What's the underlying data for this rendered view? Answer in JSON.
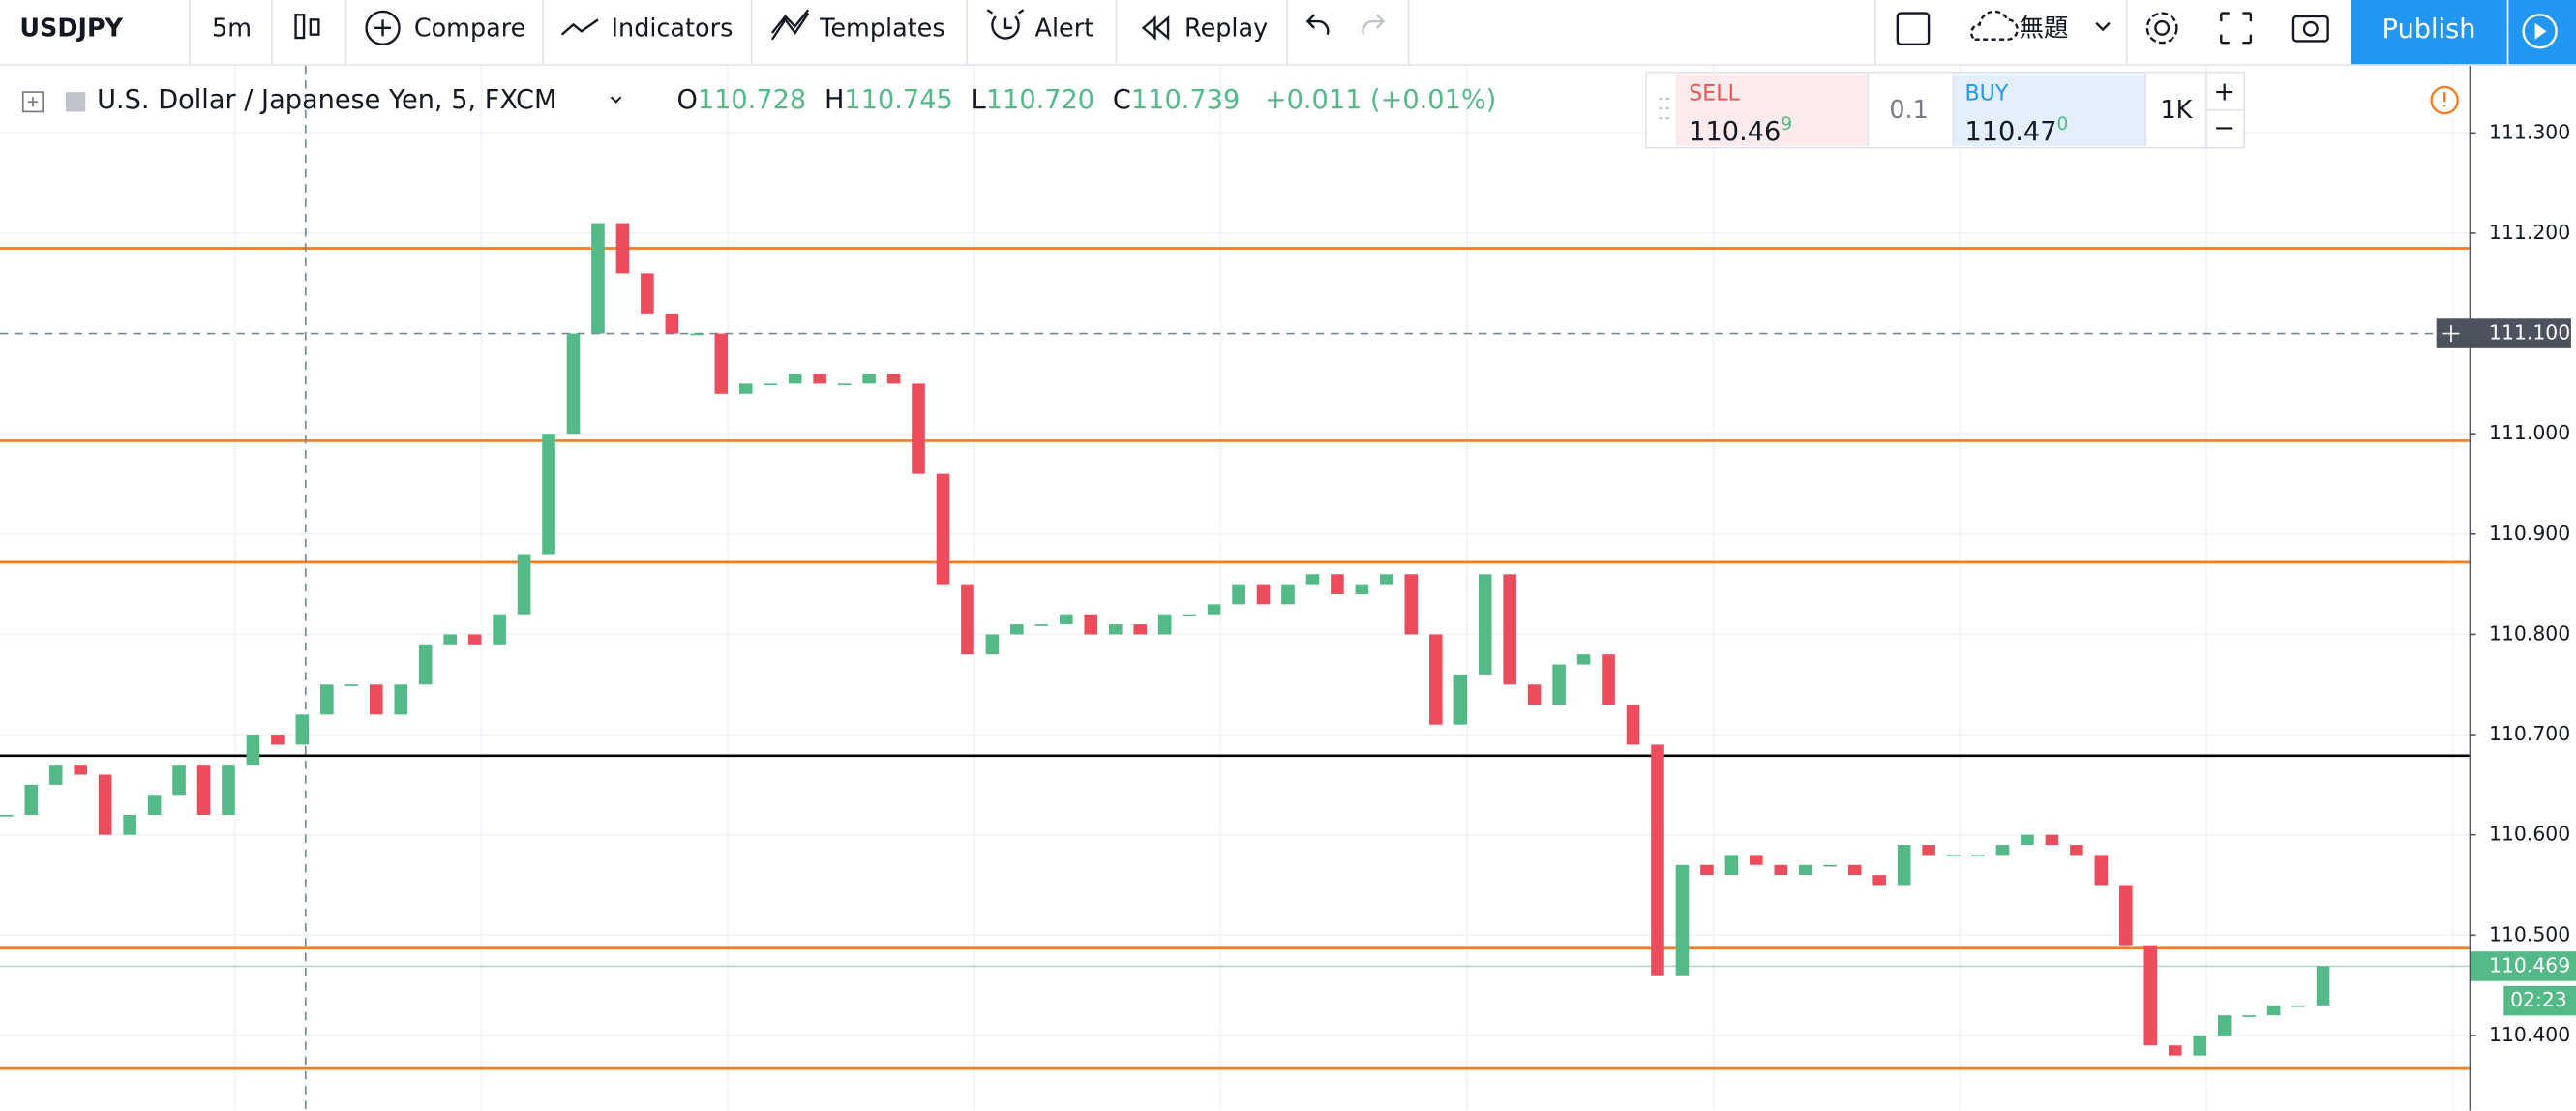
{
  "toolbar": {
    "symbol": "USDJPY",
    "interval": "5m",
    "compare": "Compare",
    "indicators": "Indicators",
    "templates": "Templates",
    "alert": "Alert",
    "replay": "Replay",
    "layout_name": "無題",
    "publish": "Publish"
  },
  "legend": {
    "title": "U.S. Dollar / Japanese Yen, 5, FXCM",
    "open_label": "O",
    "open": "110.728",
    "high_label": "H",
    "high": "110.745",
    "low_label": "L",
    "low": "110.720",
    "close_label": "C",
    "close": "110.739",
    "change": "+0.011 (+0.01%)"
  },
  "trade_panel": {
    "sell_label": "SELL",
    "sell_price": "110.46",
    "sell_price_sup": "9",
    "spread": "0.1",
    "buy_label": "BUY",
    "buy_price": "110.47",
    "buy_price_sup": "0",
    "quantity": "1K"
  },
  "chart_data": {
    "type": "candlestick",
    "up_color": "#53b987",
    "down_color": "#eb4d5c",
    "values": [
      110.62,
      110.65,
      110.67,
      110.66,
      110.6,
      110.62,
      110.64,
      110.67,
      110.62,
      110.67,
      110.7,
      110.69,
      110.72,
      110.75,
      110.75,
      110.72,
      110.75,
      110.79,
      110.8,
      110.79,
      110.82,
      110.88,
      111.0,
      111.1,
      111.21,
      111.16,
      111.12,
      111.1,
      111.1,
      111.04,
      111.05,
      111.05,
      111.06,
      111.05,
      111.05,
      111.06,
      111.05,
      110.96,
      110.85,
      110.78,
      110.8,
      110.81,
      110.81,
      110.82,
      110.8,
      110.81,
      110.8,
      110.82,
      110.82,
      110.83,
      110.85,
      110.83,
      110.85,
      110.86,
      110.84,
      110.85,
      110.86,
      110.8,
      110.71,
      110.76,
      110.86,
      110.75,
      110.73,
      110.77,
      110.78,
      110.73,
      110.69,
      110.46,
      110.57,
      110.56,
      110.58,
      110.57,
      110.56,
      110.57,
      110.57,
      110.56,
      110.55,
      110.59,
      110.58,
      110.58,
      110.58,
      110.59,
      110.6,
      110.59,
      110.58,
      110.55,
      110.49,
      110.39,
      110.38,
      110.4,
      110.42,
      110.42,
      110.43,
      110.43,
      110.469
    ],
    "ylim": [
      110.325,
      111.367
    ],
    "yticks": [
      {
        "value": 111.3,
        "label": "111.300"
      },
      {
        "value": 111.2,
        "label": "111.200"
      },
      {
        "value": 111.0,
        "label": "111.000"
      },
      {
        "value": 110.9,
        "label": "110.900"
      },
      {
        "value": 110.8,
        "label": "110.800"
      },
      {
        "value": 110.7,
        "label": "110.700"
      },
      {
        "value": 110.6,
        "label": "110.600"
      },
      {
        "value": 110.5,
        "label": "110.500"
      },
      {
        "value": 110.4,
        "label": "110.400"
      }
    ],
    "grid": true,
    "levels": [
      {
        "value": 111.185,
        "color": "#f57c1f"
      },
      {
        "value": 110.993,
        "color": "#f57c1f"
      },
      {
        "value": 110.872,
        "color": "#f57c1f"
      },
      {
        "value": 110.679,
        "color": "#000000"
      },
      {
        "value": 110.487,
        "color": "#f57c1f"
      },
      {
        "value": 110.367,
        "color": "#f57c1f"
      }
    ],
    "crosshair": {
      "value": 111.1,
      "label": "111.100"
    },
    "countdown": "02:23"
  }
}
